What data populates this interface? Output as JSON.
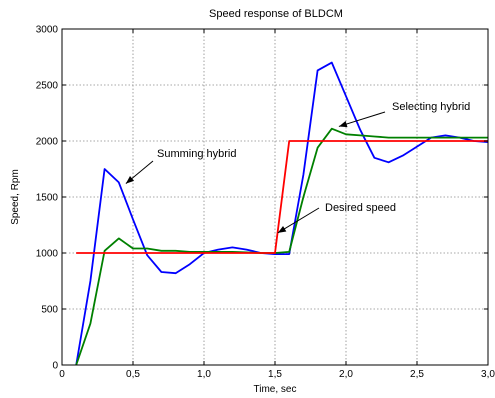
{
  "chart_data": {
    "type": "line",
    "title": "Speed response of BLDCM",
    "xlabel": "Time, sec",
    "ylabel": "Speed, Rpm",
    "xlim": [
      0,
      3.0
    ],
    "ylim": [
      0,
      3000
    ],
    "xticks": [
      0,
      0.5,
      1.0,
      1.5,
      2.0,
      2.5,
      3.0
    ],
    "xtick_labels": [
      "0",
      "0,5",
      "1,0",
      "1,5",
      "2,0",
      "2,5",
      "3,0"
    ],
    "yticks": [
      0,
      500,
      1000,
      1500,
      2000,
      2500,
      3000
    ],
    "ytick_labels": [
      "0",
      "500",
      "1000",
      "1500",
      "2000",
      "2500",
      "3000"
    ],
    "grid": true,
    "series": [
      {
        "name": "Summing hybrid",
        "color": "#0000ff",
        "x": [
          0.1,
          0.2,
          0.3,
          0.4,
          0.5,
          0.6,
          0.7,
          0.8,
          0.9,
          1.0,
          1.1,
          1.2,
          1.3,
          1.4,
          1.5,
          1.6,
          1.7,
          1.8,
          1.9,
          2.0,
          2.1,
          2.2,
          2.3,
          2.4,
          2.5,
          2.6,
          2.7,
          2.8,
          2.9,
          3.0
        ],
        "y": [
          0,
          750,
          1750,
          1630,
          1300,
          980,
          830,
          820,
          900,
          1000,
          1030,
          1050,
          1030,
          1000,
          990,
          990,
          1700,
          2630,
          2700,
          2400,
          2100,
          1850,
          1810,
          1870,
          1950,
          2030,
          2050,
          2030,
          2000,
          1990
        ]
      },
      {
        "name": "Selecting hybrid",
        "color": "#008000",
        "x": [
          0.1,
          0.2,
          0.3,
          0.4,
          0.5,
          0.6,
          0.7,
          0.8,
          0.9,
          1.0,
          1.1,
          1.2,
          1.3,
          1.4,
          1.5,
          1.6,
          1.7,
          1.8,
          1.9,
          2.0,
          2.1,
          2.2,
          2.3,
          2.4,
          2.5,
          2.6,
          2.7,
          2.8,
          2.9,
          3.0
        ],
        "y": [
          0,
          370,
          1020,
          1130,
          1040,
          1040,
          1020,
          1020,
          1010,
          1010,
          1010,
          1010,
          1005,
          1000,
          1000,
          1010,
          1500,
          1940,
          2110,
          2060,
          2050,
          2040,
          2030,
          2030,
          2030,
          2030,
          2030,
          2030,
          2030,
          2030
        ]
      },
      {
        "name": "Desired speed",
        "color": "#ff0000",
        "x": [
          0.1,
          1.5,
          1.6,
          3.0
        ],
        "y": [
          1000,
          1000,
          2000,
          2000
        ]
      }
    ],
    "annotations": [
      {
        "text": "Summing hybrid",
        "arrow_to": [
          0.45,
          1620
        ]
      },
      {
        "text": "Selecting hybrid",
        "arrow_to": [
          1.95,
          2130
        ]
      },
      {
        "text": "Desired speed",
        "arrow_to": [
          1.52,
          1180
        ]
      }
    ]
  }
}
